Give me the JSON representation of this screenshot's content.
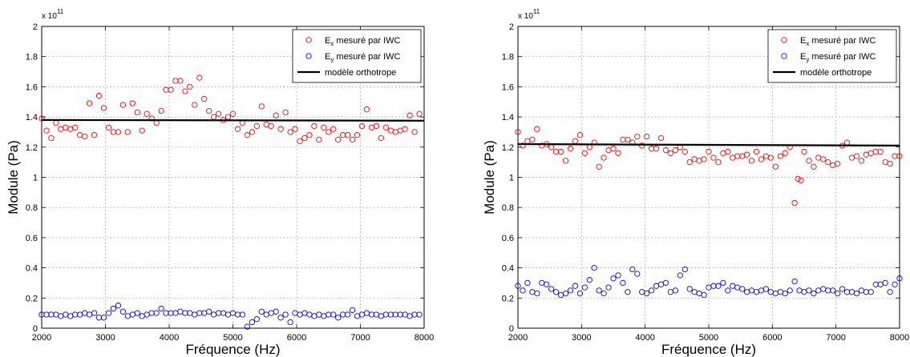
{
  "chart_data": [
    {
      "type": "scatter",
      "xlabel": "Fréquence (Hz)",
      "ylabel": "Module (Pa)",
      "exponent_base": "x 10",
      "exponent_power": "11",
      "xlim": [
        2000,
        8000
      ],
      "ylim": [
        0,
        2
      ],
      "xticks": [
        2000,
        3000,
        4000,
        5000,
        6000,
        7000,
        8000
      ],
      "yticks": [
        0,
        0.2,
        0.4,
        0.6,
        0.8,
        1,
        1.2,
        1.4,
        1.6,
        1.8,
        2
      ],
      "ytick_labels": [
        "0",
        "0.2",
        "0.4",
        "0.6",
        "0.8",
        "1",
        "1.2",
        "1.4",
        "1.6",
        "1.8",
        "2"
      ],
      "grid": true,
      "legend_position": "top-right",
      "colors": {
        "ex": "#ff0000",
        "ey": "#0000ff",
        "model": "#000000"
      },
      "legend": [
        {
          "main": "E",
          "sub": "x",
          "rest": " mesuré par IWC",
          "kind": "marker",
          "series": "ex"
        },
        {
          "main": "E",
          "sub": "y",
          "rest": " mesuré par IWC",
          "kind": "marker",
          "series": "ey"
        },
        {
          "main": "modèle orthotrope",
          "sub": "",
          "rest": "",
          "kind": "line",
          "series": "model"
        }
      ],
      "series": [
        {
          "id": "ex",
          "x": [
            2000,
            2075,
            2150,
            2225,
            2300,
            2375,
            2450,
            2525,
            2600,
            2675,
            2750,
            2825,
            2900,
            2975,
            3050,
            3125,
            3200,
            3275,
            3350,
            3425,
            3500,
            3575,
            3650,
            3725,
            3800,
            3875,
            3950,
            4025,
            4100,
            4175,
            4250,
            4325,
            4400,
            4475,
            4550,
            4625,
            4700,
            4775,
            4850,
            4925,
            5000,
            5075,
            5150,
            5225,
            5300,
            5375,
            5450,
            5525,
            5600,
            5675,
            5750,
            5825,
            5900,
            5975,
            6050,
            6125,
            6200,
            6275,
            6350,
            6425,
            6500,
            6575,
            6650,
            6725,
            6800,
            6875,
            6950,
            7025,
            7100,
            7175,
            7250,
            7325,
            7400,
            7475,
            7550,
            7625,
            7700,
            7775,
            7850,
            7925
          ],
          "y": [
            1.39,
            1.31,
            1.26,
            1.36,
            1.32,
            1.33,
            1.32,
            1.33,
            1.28,
            1.27,
            1.49,
            1.28,
            1.54,
            1.46,
            1.33,
            1.3,
            1.3,
            1.48,
            1.3,
            1.49,
            1.43,
            1.31,
            1.42,
            1.39,
            1.36,
            1.44,
            1.58,
            1.58,
            1.64,
            1.64,
            1.57,
            1.6,
            1.48,
            1.66,
            1.52,
            1.44,
            1.4,
            1.42,
            1.38,
            1.4,
            1.42,
            1.32,
            1.36,
            1.28,
            1.3,
            1.34,
            1.47,
            1.35,
            1.34,
            1.41,
            1.32,
            1.43,
            1.3,
            1.32,
            1.24,
            1.26,
            1.28,
            1.34,
            1.25,
            1.33,
            1.3,
            1.32,
            1.25,
            1.28,
            1.28,
            1.25,
            1.28,
            1.34,
            1.45,
            1.33,
            1.34,
            1.26,
            1.33,
            1.31,
            1.3,
            1.31,
            1.32,
            1.41,
            1.3,
            1.42
          ]
        },
        {
          "id": "ey",
          "x": [
            2000,
            2075,
            2150,
            2225,
            2300,
            2375,
            2450,
            2525,
            2600,
            2675,
            2750,
            2825,
            2900,
            2975,
            3050,
            3125,
            3200,
            3275,
            3350,
            3425,
            3500,
            3575,
            3650,
            3725,
            3800,
            3875,
            3950,
            4025,
            4100,
            4175,
            4250,
            4325,
            4400,
            4475,
            4550,
            4625,
            4700,
            4775,
            4850,
            4925,
            5000,
            5075,
            5150,
            5225,
            5300,
            5375,
            5450,
            5525,
            5600,
            5675,
            5750,
            5825,
            5900,
            5975,
            6050,
            6125,
            6200,
            6275,
            6350,
            6425,
            6500,
            6575,
            6650,
            6725,
            6800,
            6875,
            6950,
            7025,
            7100,
            7175,
            7250,
            7325,
            7400,
            7475,
            7550,
            7625,
            7700,
            7775,
            7850,
            7925
          ],
          "y": [
            0.09,
            0.09,
            0.09,
            0.09,
            0.08,
            0.09,
            0.08,
            0.09,
            0.09,
            0.1,
            0.09,
            0.1,
            0.07,
            0.07,
            0.1,
            0.13,
            0.15,
            0.11,
            0.08,
            0.09,
            0.1,
            0.08,
            0.09,
            0.1,
            0.1,
            0.13,
            0.1,
            0.1,
            0.1,
            0.11,
            0.1,
            0.1,
            0.09,
            0.1,
            0.1,
            0.11,
            0.09,
            0.1,
            0.1,
            0.09,
            0.1,
            0.09,
            0.09,
            0.01,
            0.04,
            0.06,
            0.11,
            0.09,
            0.1,
            0.11,
            0.07,
            0.09,
            0.04,
            0.1,
            0.09,
            0.1,
            0.09,
            0.08,
            0.09,
            0.08,
            0.09,
            0.09,
            0.07,
            0.09,
            0.09,
            0.12,
            0.08,
            0.09,
            0.1,
            0.09,
            0.09,
            0.08,
            0.09,
            0.09,
            0.09,
            0.09,
            0.09,
            0.08,
            0.09,
            0.09
          ]
        },
        {
          "id": "model",
          "x": [
            2000,
            8000
          ],
          "y": [
            1.38,
            1.375
          ]
        }
      ]
    },
    {
      "type": "scatter",
      "xlabel": "Fréquence (Hz)",
      "ylabel": "Module (Pa)",
      "exponent_base": "x 10",
      "exponent_power": "11",
      "xlim": [
        2000,
        8000
      ],
      "ylim": [
        0,
        2
      ],
      "xticks": [
        2000,
        3000,
        4000,
        5000,
        6000,
        7000,
        8000
      ],
      "yticks": [
        0,
        0.2,
        0.4,
        0.6,
        0.8,
        1,
        1.2,
        1.4,
        1.6,
        1.8,
        2
      ],
      "ytick_labels": [
        "0",
        "0.2",
        "0.4",
        "0.6",
        "0.8",
        "1",
        "1.2",
        "1.4",
        "1.6",
        "1.8",
        "2"
      ],
      "grid": true,
      "legend_position": "top-right",
      "colors": {
        "ex": "#ff0000",
        "ey": "#0000ff",
        "model": "#000000"
      },
      "legend": [
        {
          "main": "E",
          "sub": "x",
          "rest": " mesuré par IWC",
          "kind": "marker",
          "series": "ex"
        },
        {
          "main": "E",
          "sub": "y",
          "rest": " mesuré par IWC",
          "kind": "marker",
          "series": "ey"
        },
        {
          "main": "modèle orthotrope",
          "sub": "",
          "rest": "",
          "kind": "line",
          "series": "model"
        }
      ],
      "series": [
        {
          "id": "ex",
          "x": [
            2000,
            2075,
            2150,
            2225,
            2300,
            2375,
            2450,
            2525,
            2600,
            2675,
            2750,
            2825,
            2900,
            2975,
            3050,
            3125,
            3200,
            3275,
            3350,
            3425,
            3500,
            3575,
            3650,
            3725,
            3800,
            3875,
            3950,
            4025,
            4100,
            4175,
            4250,
            4325,
            4400,
            4475,
            4550,
            4625,
            4700,
            4775,
            4850,
            4925,
            5000,
            5075,
            5150,
            5225,
            5300,
            5375,
            5450,
            5525,
            5600,
            5675,
            5750,
            5825,
            5900,
            5975,
            6050,
            6125,
            6200,
            6275,
            6350,
            6400,
            6450,
            6500,
            6575,
            6650,
            6725,
            6800,
            6875,
            6950,
            7025,
            7100,
            7175,
            7250,
            7325,
            7400,
            7475,
            7550,
            7625,
            7700,
            7775,
            7850,
            7925,
            8000
          ],
          "y": [
            1.3,
            1.21,
            1.24,
            1.25,
            1.32,
            1.21,
            1.22,
            1.2,
            1.17,
            1.17,
            1.11,
            1.19,
            1.24,
            1.28,
            1.16,
            1.2,
            1.23,
            1.07,
            1.13,
            1.18,
            1.19,
            1.16,
            1.25,
            1.25,
            1.23,
            1.27,
            1.21,
            1.27,
            1.19,
            1.19,
            1.26,
            1.18,
            1.16,
            1.18,
            1.2,
            1.17,
            1.1,
            1.12,
            1.11,
            1.12,
            1.17,
            1.13,
            1.1,
            1.16,
            1.17,
            1.13,
            1.14,
            1.14,
            1.15,
            1.11,
            1.17,
            1.12,
            1.14,
            1.13,
            1.07,
            1.14,
            1.16,
            1.2,
            0.83,
            0.99,
            0.98,
            1.17,
            1.11,
            1.07,
            1.13,
            1.12,
            1.1,
            1.08,
            1.09,
            1.21,
            1.23,
            1.13,
            1.14,
            1.11,
            1.15,
            1.16,
            1.17,
            1.17,
            1.1,
            1.09,
            1.14,
            1.14
          ]
        },
        {
          "id": "ey",
          "x": [
            2000,
            2075,
            2150,
            2225,
            2300,
            2375,
            2450,
            2525,
            2600,
            2675,
            2750,
            2825,
            2900,
            2975,
            3050,
            3125,
            3200,
            3275,
            3350,
            3425,
            3500,
            3575,
            3650,
            3725,
            3800,
            3875,
            3950,
            4025,
            4100,
            4175,
            4250,
            4325,
            4400,
            4475,
            4550,
            4625,
            4700,
            4775,
            4850,
            4925,
            5000,
            5075,
            5150,
            5225,
            5300,
            5375,
            5450,
            5525,
            5600,
            5675,
            5750,
            5825,
            5900,
            5975,
            6050,
            6125,
            6200,
            6275,
            6350,
            6425,
            6500,
            6575,
            6650,
            6725,
            6800,
            6875,
            6950,
            7025,
            7100,
            7175,
            7250,
            7325,
            7400,
            7475,
            7550,
            7625,
            7700,
            7775,
            7850,
            7925,
            8000
          ],
          "y": [
            0.28,
            0.25,
            0.3,
            0.24,
            0.23,
            0.3,
            0.29,
            0.26,
            0.24,
            0.22,
            0.23,
            0.25,
            0.28,
            0.23,
            0.27,
            0.32,
            0.4,
            0.25,
            0.23,
            0.27,
            0.33,
            0.35,
            0.3,
            0.24,
            0.39,
            0.36,
            0.24,
            0.23,
            0.25,
            0.28,
            0.29,
            0.3,
            0.24,
            0.25,
            0.35,
            0.39,
            0.26,
            0.24,
            0.23,
            0.22,
            0.27,
            0.28,
            0.28,
            0.3,
            0.25,
            0.28,
            0.27,
            0.26,
            0.24,
            0.25,
            0.24,
            0.25,
            0.26,
            0.24,
            0.23,
            0.24,
            0.23,
            0.25,
            0.31,
            0.25,
            0.24,
            0.25,
            0.23,
            0.25,
            0.26,
            0.25,
            0.25,
            0.23,
            0.26,
            0.24,
            0.24,
            0.23,
            0.25,
            0.24,
            0.24,
            0.29,
            0.29,
            0.3,
            0.24,
            0.29,
            0.33
          ]
        },
        {
          "id": "model",
          "x": [
            2000,
            8000
          ],
          "y": [
            1.22,
            1.21
          ]
        }
      ]
    }
  ]
}
